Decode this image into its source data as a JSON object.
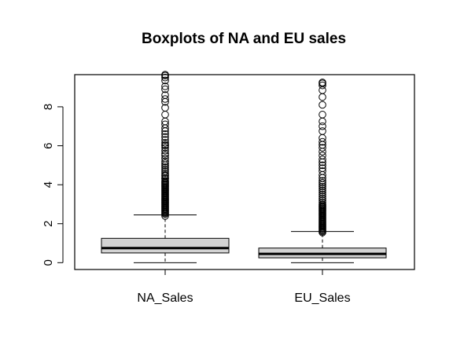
{
  "chart_data": {
    "type": "boxplot",
    "title": "Boxplots of NA and EU sales",
    "xlabel": "",
    "ylabel": "",
    "ylim": [
      -0.35,
      9.65
    ],
    "yticks": [
      0,
      2,
      4,
      6,
      8
    ],
    "ytick_labels": [
      "0",
      "2",
      "4",
      "6",
      "8"
    ],
    "grid": false,
    "box_fill": "#d3d3d3",
    "categories": [
      "NA_Sales",
      "EU_Sales"
    ],
    "boxes": [
      {
        "name": "NA_Sales",
        "whisker_low": 0,
        "q1": 0.5,
        "median": 0.75,
        "q3": 1.25,
        "whisker_high": 2.45,
        "outliers": [
          2.4,
          2.5,
          2.55,
          2.6,
          2.65,
          2.7,
          2.75,
          2.8,
          2.85,
          2.9,
          2.95,
          3.0,
          3.05,
          3.1,
          3.15,
          3.2,
          3.25,
          3.3,
          3.35,
          3.4,
          3.45,
          3.5,
          3.55,
          3.6,
          3.65,
          3.7,
          3.75,
          3.8,
          3.85,
          3.9,
          3.95,
          4.0,
          4.05,
          4.1,
          4.15,
          4.2,
          4.3,
          4.35,
          4.45,
          4.5,
          4.6,
          4.7,
          4.8,
          4.9,
          5.0,
          5.1,
          5.2,
          5.35,
          5.5,
          5.6,
          5.75,
          5.9,
          6.0,
          6.05,
          6.15,
          6.3,
          6.45,
          6.6,
          6.75,
          6.9,
          7.1,
          7.25,
          7.6,
          7.95,
          8.25,
          8.4,
          8.6,
          8.9,
          9.05,
          9.35,
          9.5,
          9.6,
          9.65
        ]
      },
      {
        "name": "EU_Sales",
        "whisker_low": 0,
        "q1": 0.25,
        "median": 0.45,
        "q3": 0.75,
        "whisker_high": 1.6,
        "outliers": [
          1.55,
          1.6,
          1.65,
          1.7,
          1.75,
          1.8,
          1.85,
          1.9,
          1.95,
          2.0,
          2.05,
          2.1,
          2.15,
          2.2,
          2.25,
          2.3,
          2.35,
          2.4,
          2.45,
          2.5,
          2.55,
          2.6,
          2.65,
          2.7,
          2.75,
          2.8,
          2.85,
          2.9,
          2.95,
          3.0,
          3.1,
          3.2,
          3.3,
          3.4,
          3.5,
          3.6,
          3.7,
          3.8,
          3.9,
          4.0,
          4.1,
          4.2,
          4.35,
          4.5,
          4.7,
          4.85,
          5.0,
          5.15,
          5.3,
          5.5,
          5.7,
          5.9,
          6.05,
          6.2,
          6.4,
          6.75,
          7.0,
          7.25,
          7.6,
          8.1,
          8.5,
          8.85,
          9.1,
          9.2,
          9.25
        ]
      }
    ]
  }
}
